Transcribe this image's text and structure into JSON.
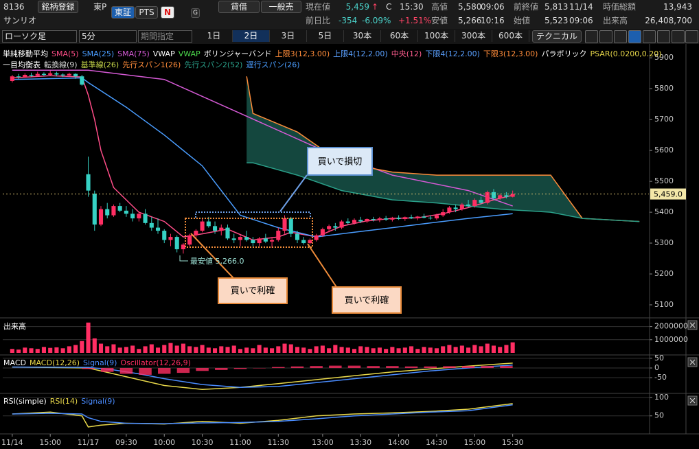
{
  "header": {
    "code": "8136",
    "register": "銘柄登録",
    "market": "東P",
    "exchange": "東証",
    "pts": "PTS",
    "n": "N",
    "g": "G",
    "name": "サンリオ",
    "margin": "貸借",
    "general": "一般売"
  },
  "quote": {
    "price_label": "現在値",
    "price": "5,459",
    "arrow": "↑",
    "c": "C",
    "time": "15:30",
    "high_label": "高値",
    "high": "5,580",
    "high_time": "09:06",
    "prev_close_label": "前終値",
    "prev_close": "5,813",
    "prev_close_date": "11/14",
    "market_cap_label": "時価総額",
    "market_cap": "13,943",
    "change_label": "前日比",
    "change": "-354",
    "change_pct": "-6.09%",
    "pts_change": "+1.51%",
    "low_label": "安値",
    "low": "5,266",
    "low_time": "10:16",
    "open_label": "始値",
    "open": "5,523",
    "open_time": "09:06",
    "volume_label": "出来高",
    "volume": "26,408,700"
  },
  "toolbar": {
    "chart_type": "ローソク足",
    "interval": "5分",
    "period": "期間指定",
    "ranges": [
      "1日",
      "2日",
      "3日",
      "5日",
      "30本",
      "60本",
      "100本",
      "300本",
      "600本"
    ],
    "selected_range": 1,
    "technical": "テクニカル"
  },
  "annotations": {
    "stop_loss": "買いで損切",
    "take_profit_1": "買いで利確",
    "take_profit_2": "買いで利確",
    "lowest": "最安値 5,266.0"
  },
  "chart_data": [
    {
      "type": "candlestick",
      "legend_title": "単純移動平均",
      "up_color": "#ff2e63",
      "down_color": "#36d1c4",
      "xlim": [
        -1.5,
        100.5
      ],
      "ylim": [
        5060,
        5945
      ],
      "yticks": [
        5100,
        5200,
        5300,
        5400,
        5500,
        5600,
        5700,
        5800,
        5900
      ],
      "xticks": [
        {
          "value": 0,
          "label": "11/14"
        },
        {
          "value": 6,
          "label": "15:00"
        },
        {
          "value": 12,
          "label": "11/17"
        },
        {
          "value": 18,
          "label": "09:30"
        },
        {
          "value": 24,
          "label": "10:00"
        },
        {
          "value": 30,
          "label": "10:30"
        },
        {
          "value": 36,
          "label": "11:00"
        },
        {
          "value": 42,
          "label": "11:30"
        },
        {
          "value": 49,
          "label": "13:00"
        },
        {
          "value": 55,
          "label": "13:30"
        },
        {
          "value": 61,
          "label": "14:00"
        },
        {
          "value": 67,
          "label": "14:30"
        },
        {
          "value": 73,
          "label": "15:00"
        },
        {
          "value": 79,
          "label": "15:30"
        }
      ],
      "last_price": 5459,
      "last_price_label": "5,459.0",
      "cloud_color": "#1e6d60",
      "x": [
        0,
        1,
        2,
        3,
        4,
        5,
        6,
        7,
        8,
        9,
        10,
        11,
        12,
        13,
        14,
        15,
        16,
        17,
        18,
        19,
        20,
        21,
        22,
        23,
        24,
        25,
        26,
        27,
        28,
        29,
        30,
        31,
        32,
        33,
        34,
        35,
        36,
        37,
        38,
        39,
        40,
        41,
        42,
        43,
        44,
        45,
        46,
        47,
        48,
        49,
        50,
        51,
        52,
        53,
        54,
        55,
        56,
        57,
        58,
        59,
        60,
        61,
        62,
        63,
        64,
        65,
        66,
        67,
        68,
        69,
        70,
        71,
        72,
        73,
        74,
        75,
        76,
        77,
        78,
        79
      ],
      "open": [
        5825,
        5840,
        5838,
        5845,
        5842,
        5848,
        5845,
        5850,
        5846,
        5843,
        5848,
        5840,
        5523,
        5460,
        5360,
        5410,
        5390,
        5420,
        5405,
        5395,
        5380,
        5395,
        5365,
        5350,
        5340,
        5310,
        5320,
        5280,
        5295,
        5325,
        5340,
        5370,
        5355,
        5340,
        5350,
        5315,
        5310,
        5320,
        5310,
        5300,
        5315,
        5305,
        5310,
        5340,
        5380,
        5330,
        5310,
        5300,
        5310,
        5325,
        5345,
        5355,
        5350,
        5370,
        5365,
        5375,
        5370,
        5378,
        5375,
        5380,
        5376,
        5382,
        5378,
        5384,
        5380,
        5386,
        5382,
        5380,
        5390,
        5400,
        5415,
        5410,
        5425,
        5420,
        5440,
        5430,
        5465,
        5445,
        5455,
        5450
      ],
      "high": [
        5845,
        5848,
        5850,
        5852,
        5855,
        5853,
        5858,
        5855,
        5850,
        5852,
        5850,
        5845,
        5580,
        5470,
        5420,
        5430,
        5425,
        5430,
        5420,
        5410,
        5400,
        5410,
        5385,
        5380,
        5345,
        5330,
        5325,
        5300,
        5330,
        5345,
        5380,
        5385,
        5370,
        5360,
        5360,
        5330,
        5325,
        5340,
        5320,
        5320,
        5330,
        5320,
        5350,
        5390,
        5385,
        5340,
        5320,
        5315,
        5330,
        5350,
        5360,
        5365,
        5375,
        5380,
        5380,
        5385,
        5380,
        5385,
        5385,
        5388,
        5385,
        5390,
        5386,
        5392,
        5388,
        5395,
        5390,
        5395,
        5410,
        5420,
        5425,
        5430,
        5440,
        5445,
        5450,
        5470,
        5475,
        5460,
        5465,
        5470
      ],
      "low": [
        5820,
        5832,
        5835,
        5838,
        5840,
        5840,
        5842,
        5840,
        5838,
        5840,
        5832,
        5810,
        5450,
        5340,
        5355,
        5380,
        5385,
        5400,
        5385,
        5370,
        5370,
        5360,
        5340,
        5330,
        5300,
        5290,
        5270,
        5266,
        5290,
        5315,
        5335,
        5350,
        5330,
        5325,
        5310,
        5300,
        5290,
        5305,
        5290,
        5290,
        5300,
        5285,
        5305,
        5330,
        5320,
        5300,
        5295,
        5295,
        5305,
        5320,
        5335,
        5340,
        5345,
        5360,
        5360,
        5365,
        5365,
        5370,
        5368,
        5372,
        5370,
        5375,
        5372,
        5378,
        5374,
        5380,
        5376,
        5375,
        5385,
        5395,
        5400,
        5405,
        5415,
        5415,
        5425,
        5425,
        5440,
        5440,
        5445,
        5448
      ],
      "close": [
        5840,
        5838,
        5845,
        5842,
        5848,
        5845,
        5850,
        5846,
        5843,
        5848,
        5840,
        5813,
        5470,
        5360,
        5410,
        5390,
        5420,
        5405,
        5395,
        5380,
        5395,
        5365,
        5350,
        5340,
        5310,
        5320,
        5280,
        5295,
        5325,
        5340,
        5370,
        5355,
        5340,
        5350,
        5315,
        5310,
        5320,
        5310,
        5300,
        5315,
        5305,
        5310,
        5340,
        5380,
        5330,
        5310,
        5300,
        5310,
        5325,
        5345,
        5355,
        5350,
        5370,
        5365,
        5375,
        5370,
        5378,
        5375,
        5380,
        5376,
        5382,
        5378,
        5384,
        5380,
        5386,
        5382,
        5380,
        5390,
        5400,
        5415,
        5410,
        5425,
        5420,
        5440,
        5430,
        5465,
        5445,
        5455,
        5450,
        5459
      ],
      "series": [
        {
          "name": "SMA(5)",
          "color": "#ff4d88",
          "x": [
            0,
            6,
            11,
            12,
            13,
            14,
            16,
            20,
            24,
            27,
            30,
            34,
            38,
            42,
            44,
            48,
            52,
            56,
            60,
            64,
            68,
            72,
            76,
            79
          ],
          "values": [
            5835,
            5842,
            5838,
            5780,
            5700,
            5600,
            5480,
            5400,
            5370,
            5320,
            5330,
            5345,
            5310,
            5320,
            5335,
            5320,
            5355,
            5372,
            5380,
            5382,
            5395,
            5415,
            5440,
            5455
          ]
        },
        {
          "name": "SMA(25)",
          "color": "#4a9dff",
          "x": [
            0,
            11,
            12,
            18,
            24,
            30,
            36,
            42,
            48,
            54,
            60,
            66,
            72,
            79
          ],
          "values": [
            5830,
            5835,
            5820,
            5740,
            5650,
            5550,
            5390,
            5350,
            5320,
            5335,
            5350,
            5365,
            5380,
            5395
          ]
        },
        {
          "name": "SMA(75)",
          "color": "#d65ad6",
          "x": [
            0,
            12,
            24,
            36,
            48,
            60,
            72,
            79
          ],
          "values": [
            5860,
            5860,
            5830,
            5720,
            5610,
            5520,
            5470,
            5420
          ]
        },
        {
          "name": "先行スパン1(26)",
          "color": "#ff8c3a",
          "x": [
            37,
            38,
            45,
            52,
            60,
            67,
            77,
            85,
            90,
            99
          ],
          "values": [
            5840,
            5720,
            5660,
            5560,
            5530,
            5520,
            5520,
            5520,
            5380,
            5370
          ]
        },
        {
          "name": "先行スパン2(52)",
          "color": "#2aa08a",
          "x": [
            37,
            38,
            45,
            52,
            60,
            67,
            77,
            85,
            90,
            99
          ],
          "values": [
            5560,
            5560,
            5520,
            5470,
            5440,
            5430,
            5410,
            5400,
            5380,
            5370
          ]
        }
      ],
      "overlay_labels": [
        {
          "text": "VWAP",
          "color": "#ffffff"
        },
        {
          "text": "VWAP",
          "color": "#4cd94c"
        },
        {
          "text": "ボリンジャーバンド",
          "color": "#ffffff"
        },
        {
          "text": "上限3(12,3.00)",
          "color": "#ff8c3a"
        },
        {
          "text": "上限4(12,2.00)",
          "color": "#5aa0ff"
        },
        {
          "text": "中央(12)",
          "color": "#ff5d8f"
        },
        {
          "text": "下限4(12,2.00)",
          "color": "#5aa0ff"
        },
        {
          "text": "下限3(12,3.00)",
          "color": "#ff8c3a"
        },
        {
          "text": "パラボリック",
          "color": "#ffffff"
        },
        {
          "text": "PSAR(0.0200,0.20)",
          "color": "#e8d84a"
        }
      ],
      "ichimoku_title": "一目均衡表",
      "ichimoku_labels": [
        {
          "text": "転換線(9)",
          "color": "#d8d8d8"
        },
        {
          "text": "基準線(26)",
          "color": "#c8d84a"
        }
      ],
      "lagging_label": {
        "text": "遅行スパン(26)",
        "color": "#4a9dff"
      }
    },
    {
      "type": "bar",
      "title": "出来高",
      "color": "#ff2e63",
      "ylim": [
        0,
        2500000
      ],
      "yticks": [
        1000000,
        2000000
      ],
      "x": [
        0,
        1,
        2,
        3,
        4,
        5,
        6,
        7,
        8,
        9,
        10,
        11,
        12,
        13,
        14,
        15,
        16,
        17,
        18,
        19,
        20,
        21,
        22,
        23,
        24,
        25,
        26,
        27,
        28,
        29,
        30,
        31,
        32,
        33,
        34,
        35,
        36,
        37,
        38,
        39,
        40,
        41,
        42,
        43,
        44,
        45,
        46,
        47,
        48,
        49,
        50,
        51,
        52,
        53,
        54,
        55,
        56,
        57,
        58,
        59,
        60,
        61,
        62,
        63,
        64,
        65,
        66,
        67,
        68,
        69,
        70,
        71,
        72,
        73,
        74,
        75,
        76,
        77,
        78,
        79
      ],
      "values": [
        300000,
        250000,
        400000,
        350000,
        300000,
        450000,
        380000,
        420000,
        350000,
        500000,
        600000,
        900000,
        2300000,
        1100000,
        700000,
        500000,
        650000,
        400000,
        450000,
        550000,
        300000,
        500000,
        650000,
        400000,
        600000,
        750000,
        550000,
        700000,
        500000,
        450000,
        600000,
        400000,
        350000,
        500000,
        450000,
        550000,
        300000,
        400000,
        350000,
        600000,
        400000,
        350000,
        500000,
        700000,
        650000,
        450000,
        400000,
        300000,
        500000,
        550000,
        350000,
        600000,
        450000,
        400000,
        300000,
        500000,
        450000,
        350000,
        400000,
        300000,
        450000,
        350000,
        400000,
        500000,
        300000,
        450000,
        400000,
        350000,
        500000,
        600000,
        450000,
        550000,
        400000,
        600000,
        500000,
        700000,
        550000,
        450000,
        600000,
        800000
      ]
    },
    {
      "type": "line",
      "title": "MACD",
      "ylim": [
        -120,
        60
      ],
      "yticks": [
        -50,
        0,
        50
      ],
      "series": [
        {
          "name": "MACD(12,26)",
          "color": "#e8d84a",
          "x": [
            0,
            12,
            16,
            20,
            24,
            30,
            36,
            42,
            48,
            54,
            60,
            66,
            72,
            79
          ],
          "values": [
            5,
            0,
            -30,
            -60,
            -90,
            -110,
            -100,
            -80,
            -60,
            -40,
            -20,
            -5,
            10,
            25
          ]
        },
        {
          "name": "Signal(9)",
          "color": "#4a8cff",
          "x": [
            0,
            12,
            16,
            20,
            24,
            30,
            36,
            42,
            48,
            54,
            60,
            66,
            72,
            79
          ],
          "values": [
            5,
            3,
            -10,
            -30,
            -55,
            -85,
            -100,
            -95,
            -75,
            -55,
            -35,
            -15,
            0,
            15
          ]
        },
        {
          "name": "Oscillator(12,26,9)",
          "color": "#ff2e63",
          "type": "bar",
          "x": [
            12,
            15,
            18,
            21,
            24,
            27,
            30,
            33,
            36,
            39,
            42,
            45,
            48,
            51,
            54,
            57,
            60,
            63,
            66,
            69,
            72,
            75,
            78
          ],
          "values": [
            -5,
            -20,
            -30,
            -35,
            -30,
            -25,
            -15,
            -10,
            -5,
            0,
            5,
            8,
            10,
            12,
            12,
            10,
            10,
            8,
            8,
            9,
            10,
            10,
            10
          ]
        }
      ]
    },
    {
      "type": "line",
      "title": "RSI(simple)",
      "ylim": [
        5,
        107
      ],
      "yticks": [
        50,
        100
      ],
      "series": [
        {
          "name": "RSI(14)",
          "color": "#e8d84a",
          "x": [
            0,
            6,
            11,
            12,
            14,
            18,
            24,
            30,
            36,
            42,
            48,
            54,
            60,
            66,
            72,
            79
          ],
          "values": [
            55,
            60,
            50,
            20,
            25,
            30,
            28,
            35,
            30,
            38,
            50,
            55,
            58,
            62,
            68,
            83
          ]
        },
        {
          "name": "Signal(9)",
          "color": "#4a8cff",
          "x": [
            0,
            6,
            11,
            12,
            14,
            18,
            24,
            30,
            36,
            42,
            48,
            54,
            60,
            66,
            72,
            79
          ],
          "values": [
            55,
            57,
            55,
            45,
            35,
            30,
            29,
            31,
            32,
            35,
            42,
            50,
            55,
            60,
            64,
            80
          ]
        }
      ]
    }
  ]
}
